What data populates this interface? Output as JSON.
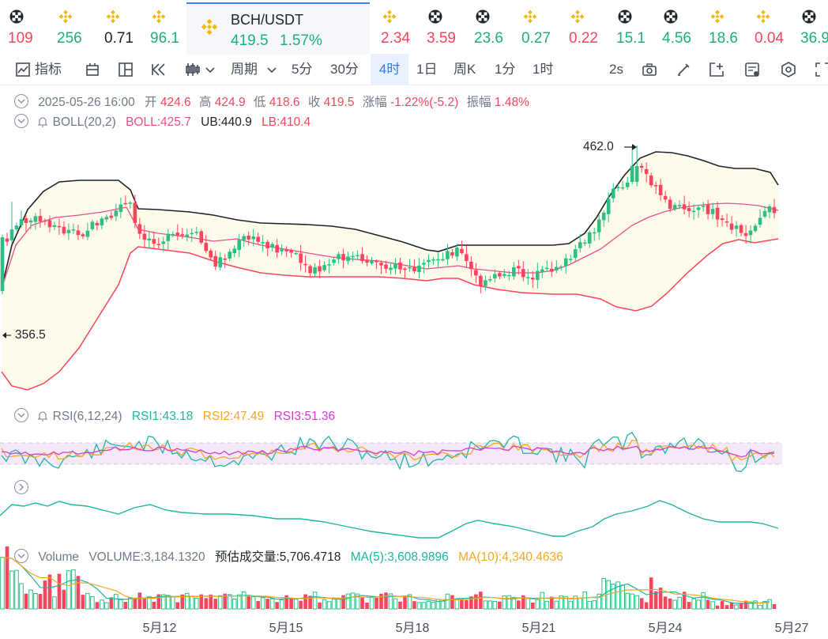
{
  "ticker": {
    "items": [
      {
        "icon": "bnb-icon",
        "value": "109",
        "color": "#f6465d"
      },
      {
        "icon": "binance-icon",
        "value": "256",
        "color": "#1fae79"
      },
      {
        "icon": "binance-icon",
        "value": "0.71",
        "color": "#1e2329"
      },
      {
        "icon": "binance-icon",
        "value": "96.1",
        "color": "#1fae79"
      },
      {
        "icon": "binance-icon",
        "value": "2.34",
        "color": "#f6465d"
      },
      {
        "icon": "bnb-icon",
        "value": "3.59",
        "color": "#f6465d"
      },
      {
        "icon": "bnb-icon",
        "value": "23.6",
        "color": "#1fae79"
      },
      {
        "icon": "binance-icon",
        "value": "0.27",
        "color": "#1fae79"
      },
      {
        "icon": "binance-icon",
        "value": "0.22",
        "color": "#f6465d"
      },
      {
        "icon": "bnb-icon",
        "value": "15.1",
        "color": "#1fae79"
      },
      {
        "icon": "bnb-icon",
        "value": "4.56",
        "color": "#1fae79"
      },
      {
        "icon": "binance-icon",
        "value": "18.6",
        "color": "#1fae79"
      },
      {
        "icon": "binance-icon",
        "value": "0.04",
        "color": "#f6465d"
      },
      {
        "icon": "bnb-icon",
        "value": "36.9",
        "color": "#1fae79"
      }
    ],
    "active": {
      "symbol": "BCH/USDT",
      "price": "419.5",
      "change": "1.57%"
    }
  },
  "toolbar": {
    "indicators": "指标",
    "period": "周期",
    "intervals": [
      "5分",
      "30分",
      "4时",
      "1日",
      "周K",
      "1分",
      "1时"
    ],
    "selected_interval": "4时",
    "refresh": "2s"
  },
  "info": {
    "date": "2025-05-26 16:00",
    "open_label": "开",
    "open": "424.6",
    "high_label": "高",
    "high": "424.9",
    "low_label": "低",
    "low": "418.6",
    "close_label": "收",
    "close": "419.5",
    "change_label": "涨幅",
    "change": "-1.22%(-5.2)",
    "amp_label": "振幅",
    "amp": "1.48%"
  },
  "boll": {
    "name": "BOLL(20,2)",
    "mid": "BOLL:425.7",
    "ub": "UB:440.9",
    "lb": "LB:410.4"
  },
  "rsi": {
    "name": "RSI(6,12,24)",
    "rsi1": "RSI1:43.18",
    "rsi2": "RSI2:47.49",
    "rsi3": "RSI3:51.36"
  },
  "volume": {
    "name": "Volume",
    "vol": "VOLUME:3,184.1320",
    "est": "预估成交量:5,706.4718",
    "ma5": "MA(5):3,608.9896",
    "ma10": "MA(10):4,340.4636"
  },
  "chart_data": {
    "type": "candlestick",
    "annotations": {
      "high": "462.0",
      "low": "356.5"
    },
    "x_ticks": [
      "5月12",
      "5月15",
      "5月18",
      "5月21",
      "5月24",
      "5月27"
    ],
    "colors": {
      "up": "#2ebd85",
      "down": "#f6465d",
      "boll_mid": "#e8508a",
      "boll_band": "#f6465d",
      "boll_upper": "#1e2329",
      "rsi1": "#1fb5a0",
      "rsi2": "#f5a623",
      "rsi3": "#d63ccf"
    }
  }
}
